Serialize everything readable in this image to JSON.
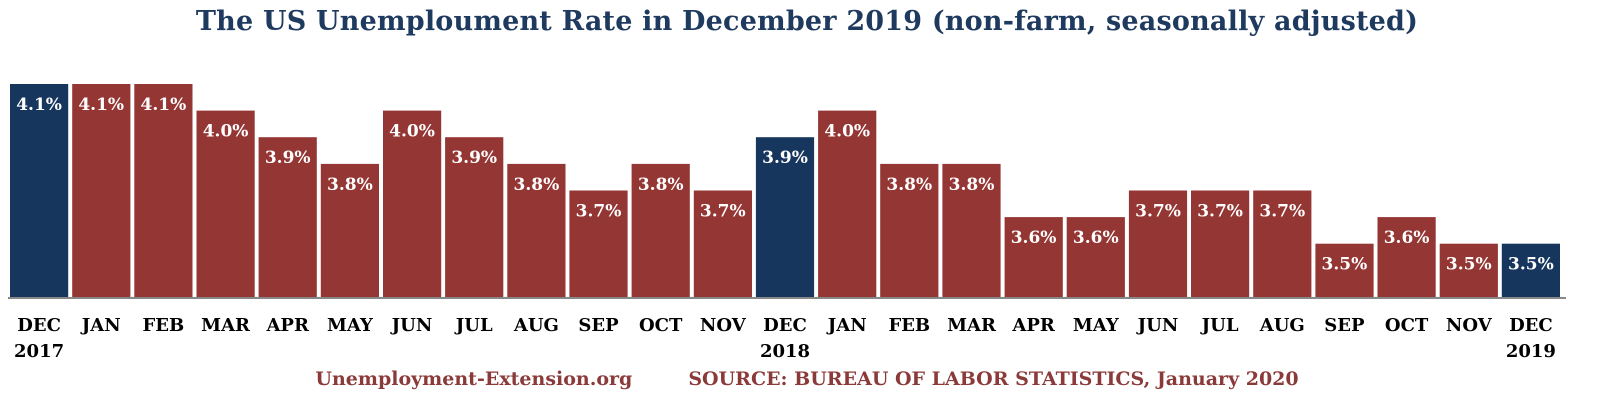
{
  "chart_data": {
    "type": "bar",
    "title": "The US Unemploument Rate in December 2019 (non-farm, seasonally adjusted)",
    "categories": [
      {
        "month": "DEC",
        "year": "2017"
      },
      {
        "month": "JAN",
        "year": ""
      },
      {
        "month": "FEB",
        "year": ""
      },
      {
        "month": "MAR",
        "year": ""
      },
      {
        "month": "APR",
        "year": ""
      },
      {
        "month": "MAY",
        "year": ""
      },
      {
        "month": "JUN",
        "year": ""
      },
      {
        "month": "JUL",
        "year": ""
      },
      {
        "month": "AUG",
        "year": ""
      },
      {
        "month": "SEP",
        "year": ""
      },
      {
        "month": "OCT",
        "year": ""
      },
      {
        "month": "NOV",
        "year": ""
      },
      {
        "month": "DEC",
        "year": "2018"
      },
      {
        "month": "JAN",
        "year": ""
      },
      {
        "month": "FEB",
        "year": ""
      },
      {
        "month": "MAR",
        "year": ""
      },
      {
        "month": "APR",
        "year": ""
      },
      {
        "month": "MAY",
        "year": ""
      },
      {
        "month": "JUN",
        "year": ""
      },
      {
        "month": "JUL",
        "year": ""
      },
      {
        "month": "AUG",
        "year": ""
      },
      {
        "month": "SEP",
        "year": ""
      },
      {
        "month": "OCT",
        "year": ""
      },
      {
        "month": "NOV",
        "year": ""
      },
      {
        "month": "DEC",
        "year": "2019"
      }
    ],
    "values": [
      4.1,
      4.1,
      4.1,
      4.0,
      3.9,
      3.8,
      4.0,
      3.9,
      3.8,
      3.7,
      3.8,
      3.7,
      3.9,
      4.0,
      3.8,
      3.8,
      3.6,
      3.6,
      3.7,
      3.7,
      3.7,
      3.5,
      3.6,
      3.5,
      3.5
    ],
    "labels": [
      "4.1%",
      "4.1%",
      "4.1%",
      "4.0%",
      "3.9%",
      "3.8%",
      "4.0%",
      "3.9%",
      "3.8%",
      "3.7%",
      "3.8%",
      "3.7%",
      "3.9%",
      "4.0%",
      "3.8%",
      "3.8%",
      "3.6%",
      "3.6%",
      "3.7%",
      "3.7%",
      "3.7%",
      "3.5%",
      "3.6%",
      "3.5%",
      "3.5%"
    ],
    "highlight": [
      true,
      false,
      false,
      false,
      false,
      false,
      false,
      false,
      false,
      false,
      false,
      false,
      true,
      false,
      false,
      false,
      false,
      false,
      false,
      false,
      false,
      false,
      false,
      false,
      true
    ],
    "ylim": [
      3.3,
      4.1
    ],
    "grid": false,
    "colors": {
      "bar": "#943634",
      "highlight": "#17365d",
      "label": "#ffffff",
      "axis_text": "#000000"
    }
  },
  "footer": {
    "site": "Unemployment-Extension.org",
    "source": "SOURCE: BUREAU OF LABOR STATISTICS, January 2020"
  }
}
